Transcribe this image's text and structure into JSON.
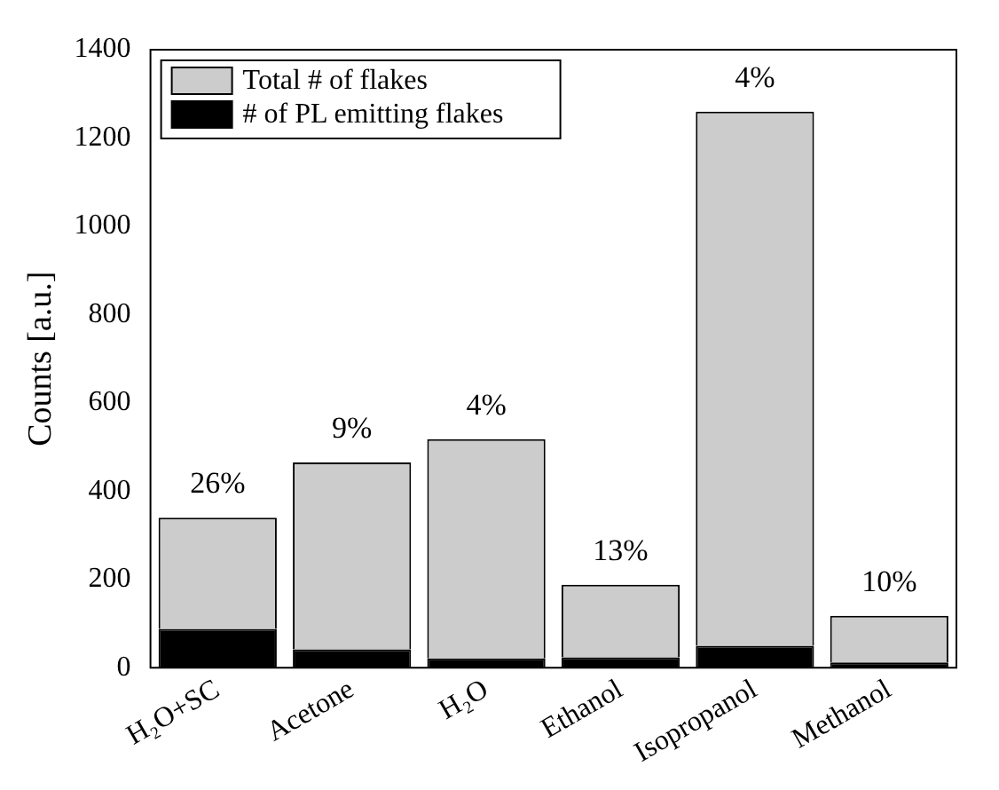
{
  "chart_data": {
    "type": "bar",
    "stacked": true,
    "ylabel": "Counts [a.u.]",
    "categories": [
      "H₂O+SC",
      "Acetone",
      "H₂O",
      "Ethanol",
      "Isopropanol",
      "Methanol"
    ],
    "series": [
      {
        "name": "# of PL emitting flakes",
        "color": "#000000",
        "values": [
          88,
          42,
          21,
          24,
          50,
          12
        ]
      },
      {
        "name": "Total # of flakes",
        "color": "#cccccc",
        "values": [
          252,
          423,
          497,
          164,
          1210,
          106
        ]
      }
    ],
    "ylim": [
      0,
      1400
    ],
    "yticks": [
      0,
      200,
      400,
      600,
      800,
      1000,
      1200,
      1400
    ],
    "grid": false,
    "legend": "top left",
    "annotations": [
      {
        "text": "26%",
        "x": "H₂O+SC",
        "y": 340
      },
      {
        "text": "9%",
        "x": "Acetone",
        "y": 465
      },
      {
        "text": "4%",
        "x": "H₂O",
        "y": 518
      },
      {
        "text": "13%",
        "x": "Ethanol",
        "y": 188
      },
      {
        "text": "4%",
        "x": "Isopropanol",
        "y": 1260
      },
      {
        "text": "10%",
        "x": "Methanol",
        "y": 118
      }
    ]
  }
}
